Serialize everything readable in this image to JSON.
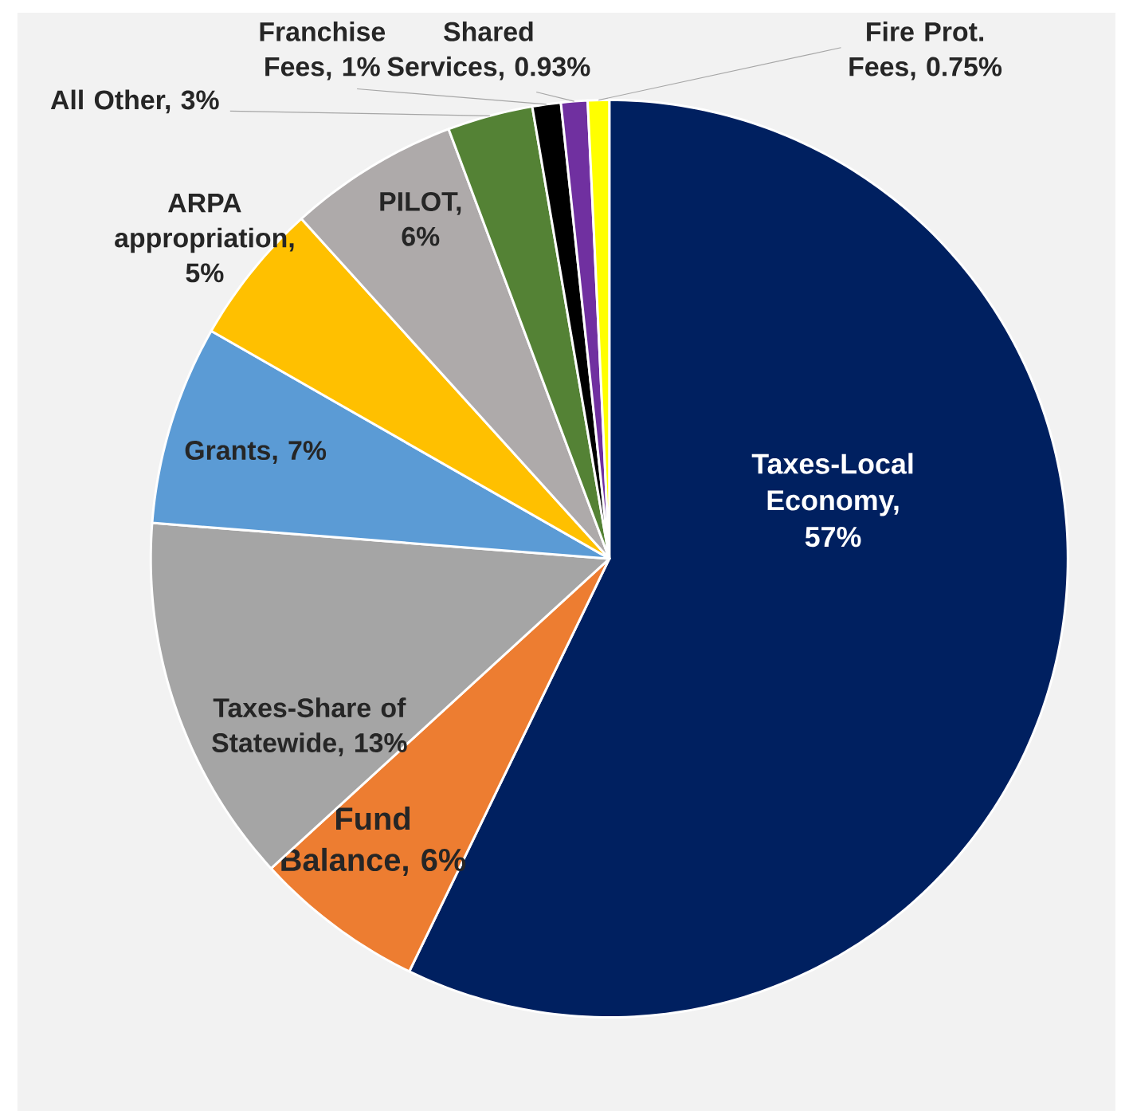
{
  "chart_data": {
    "type": "pie",
    "categories": [
      "Taxes-Local Economy, 57%",
      "Fund Balance, 6%",
      "Taxes-Share of Statewide, 13%",
      "Grants, 7%",
      "ARPA appropriation, 5%",
      "PILOT, 6%",
      "All Other, 3%",
      "Franchise Fees, 1%",
      "Shared Services, 0.93%",
      "Fire Prot. Fees, 0.75%"
    ],
    "values": [
      57,
      6,
      13,
      7,
      5,
      6,
      3,
      1,
      0.93,
      0.75
    ],
    "colors": [
      "#002060",
      "#ed7d31",
      "#a5a5a5",
      "#5b9bd5",
      "#ffc000",
      "#aeaaaa",
      "#548235",
      "#000000",
      "#7030a0",
      "#ffff00"
    ]
  }
}
